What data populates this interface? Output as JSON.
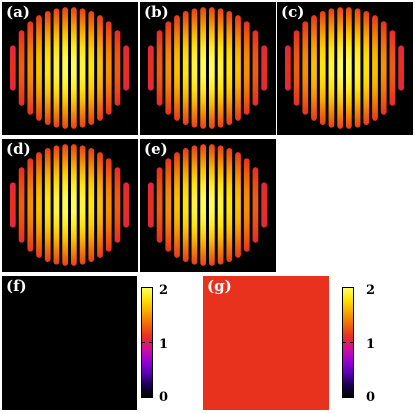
{
  "panels": [
    {
      "id": "a",
      "label": "(a)",
      "type": "fringes"
    },
    {
      "id": "b",
      "label": "(b)",
      "type": "fringes"
    },
    {
      "id": "c",
      "label": "(c)",
      "type": "fringes"
    },
    {
      "id": "d",
      "label": "(d)",
      "type": "fringes"
    },
    {
      "id": "e",
      "label": "(e)",
      "type": "fringes"
    },
    {
      "id": "f",
      "label": "(f)",
      "type": "uniform",
      "level": 0.0
    },
    {
      "id": "g",
      "label": "(g)",
      "type": "uniform",
      "level": 1.12
    }
  ],
  "colorbars": [
    {
      "id": "f",
      "ticks": [
        "2",
        "1",
        "0"
      ],
      "max": 2,
      "min": 0
    },
    {
      "id": "g",
      "ticks": [
        "2",
        "1",
        "0"
      ],
      "max": 2,
      "min": 0
    }
  ],
  "colormap": [
    "#000000",
    "#1a0050",
    "#5a00b4",
    "#9a00d8",
    "#d0109a",
    "#e8301e",
    "#f06a0a",
    "#f8a800",
    "#ffe000",
    "#ffff60"
  ],
  "fringe_count": 14
}
